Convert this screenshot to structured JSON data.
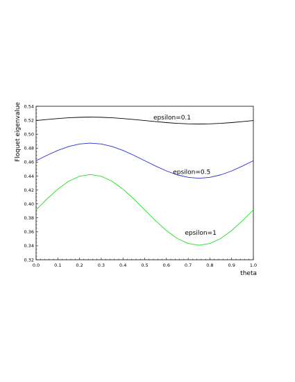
{
  "chart_data": {
    "type": "line",
    "title": "",
    "xlabel": "theta",
    "ylabel": "Floquet eigenvalue",
    "xlim": [
      0.0,
      1.0
    ],
    "ylim": [
      0.32,
      0.54
    ],
    "x_ticks": [
      "0.0",
      "0.1",
      "0.2",
      "0.3",
      "0.4",
      "0.5",
      "0.6",
      "0.7",
      "0.8",
      "0.9",
      "1.0"
    ],
    "y_ticks": [
      "0.32",
      "0.34",
      "0.36",
      "0.38",
      "0.40",
      "0.42",
      "0.44",
      "0.46",
      "0.48",
      "0.50",
      "0.52",
      "0.54"
    ],
    "grid": false,
    "legend": "none (inline labels)",
    "series": [
      {
        "name": "epsilon=0.1",
        "color": "#000000",
        "label_at": [
          0.54,
          0.521
        ],
        "x": [
          0.0,
          0.05,
          0.1,
          0.15,
          0.2,
          0.25,
          0.3,
          0.35,
          0.4,
          0.45,
          0.5,
          0.55,
          0.6,
          0.65,
          0.7,
          0.75,
          0.8,
          0.85,
          0.9,
          0.95,
          1.0
        ],
        "y": [
          0.5195,
          0.521,
          0.5224,
          0.5235,
          0.5242,
          0.5245,
          0.5242,
          0.5235,
          0.5224,
          0.521,
          0.5195,
          0.518,
          0.5166,
          0.5155,
          0.5148,
          0.5145,
          0.5148,
          0.5155,
          0.5166,
          0.518,
          0.5195
        ]
      },
      {
        "name": "epsilon=0.5",
        "color": "#2a2ad6",
        "label_at": [
          0.63,
          0.443
        ],
        "x": [
          0.0,
          0.05,
          0.1,
          0.15,
          0.2,
          0.25,
          0.3,
          0.35,
          0.4,
          0.45,
          0.5,
          0.55,
          0.6,
          0.65,
          0.7,
          0.75,
          0.8,
          0.85,
          0.9,
          0.95,
          1.0
        ],
        "y": [
          0.462,
          0.4697,
          0.4767,
          0.4823,
          0.4859,
          0.4872,
          0.4859,
          0.4823,
          0.4767,
          0.4697,
          0.462,
          0.4543,
          0.4473,
          0.4417,
          0.4381,
          0.4368,
          0.4381,
          0.4417,
          0.4473,
          0.4543,
          0.462
        ]
      },
      {
        "name": "epsilon=1",
        "color": "#22dd22",
        "label_at": [
          0.685,
          0.356
        ],
        "x": [
          0.0,
          0.05,
          0.1,
          0.15,
          0.2,
          0.25,
          0.3,
          0.35,
          0.4,
          0.45,
          0.5,
          0.55,
          0.6,
          0.65,
          0.7,
          0.75,
          0.8,
          0.85,
          0.9,
          0.95,
          1.0
        ],
        "y": [
          0.3915,
          0.4071,
          0.4212,
          0.4325,
          0.4397,
          0.4422,
          0.4397,
          0.4325,
          0.4212,
          0.4071,
          0.3915,
          0.3759,
          0.3618,
          0.3505,
          0.3433,
          0.3408,
          0.3433,
          0.3505,
          0.3618,
          0.3759,
          0.3915
        ]
      }
    ]
  }
}
